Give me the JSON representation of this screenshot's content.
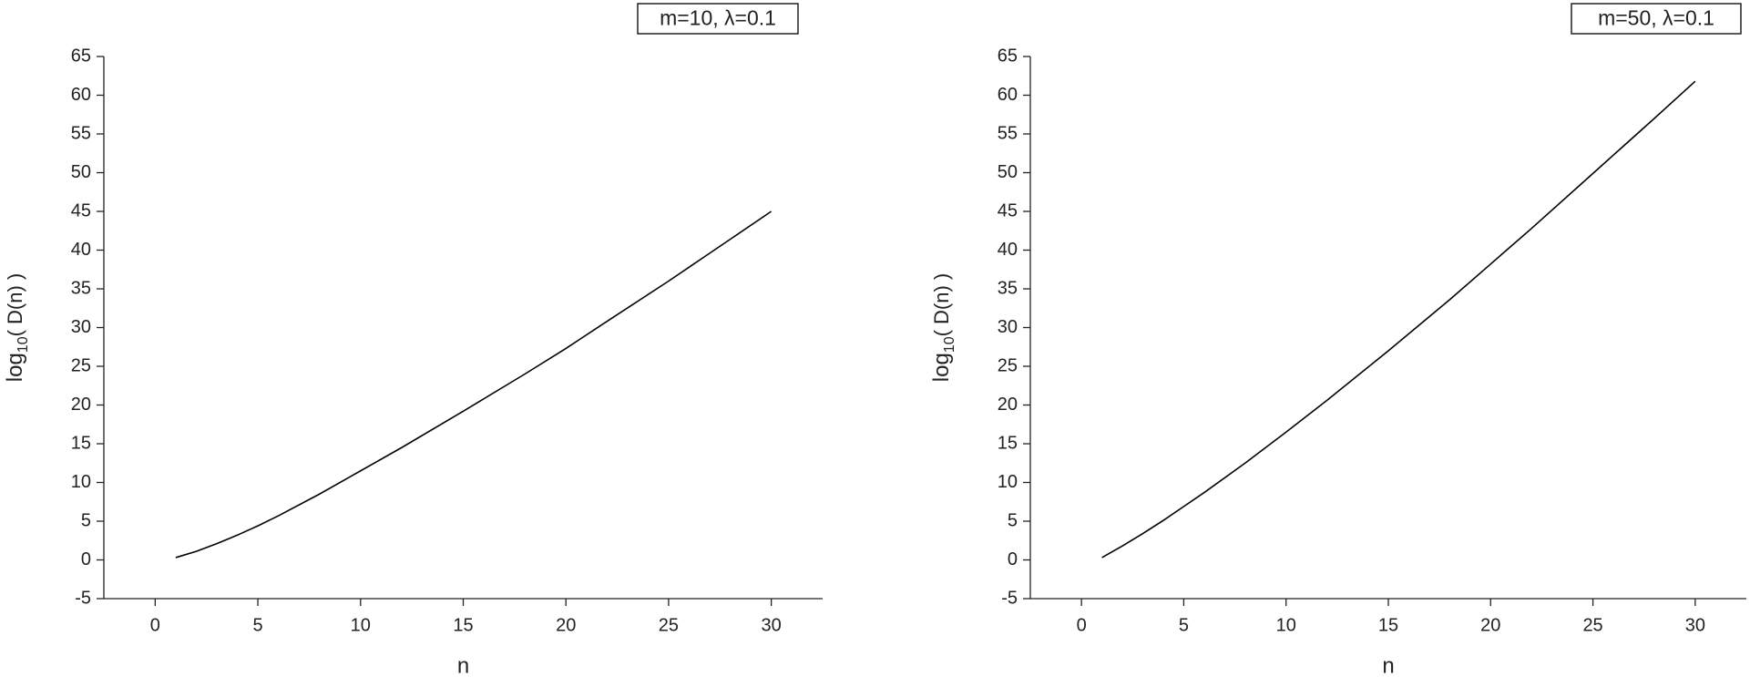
{
  "chart_data": [
    {
      "type": "line",
      "annotation": "m=10, λ=0.1",
      "x_label": "n",
      "y_label": {
        "base": "log",
        "subscript": "10",
        "argument": "( D(n) )"
      },
      "x": [
        1,
        2,
        3,
        4,
        5,
        6,
        8,
        10,
        12,
        15,
        18,
        20,
        22,
        25,
        28,
        30
      ],
      "series": [
        {
          "color": "#000000",
          "values": [
            0.3,
            1.1,
            2.1,
            3.2,
            4.4,
            5.7,
            8.5,
            11.5,
            14.5,
            19.2,
            24.0,
            27.3,
            30.8,
            36.0,
            41.4,
            45.0
          ]
        }
      ],
      "xlim": [
        -2.5,
        32.5
      ],
      "xticks": [
        0,
        5,
        10,
        15,
        20,
        25,
        30
      ],
      "ylim": [
        -5,
        65
      ],
      "yticks": [
        -5,
        0,
        5,
        10,
        15,
        20,
        25,
        30,
        35,
        40,
        45,
        50,
        55,
        60,
        65
      ]
    },
    {
      "type": "line",
      "annotation": "m=50, λ=0.1",
      "x_label": "n",
      "y_label": {
        "base": "log",
        "subscript": "10",
        "argument": "( D(n) )"
      },
      "x": [
        1,
        2,
        3,
        4,
        5,
        6,
        8,
        10,
        12,
        15,
        18,
        20,
        22,
        25,
        28,
        30
      ],
      "series": [
        {
          "color": "#000000",
          "values": [
            0.3,
            1.8,
            3.4,
            5.1,
            6.9,
            8.7,
            12.5,
            16.5,
            20.6,
            27.0,
            33.6,
            38.2,
            42.8,
            49.9,
            57.0,
            61.8
          ]
        }
      ],
      "xlim": [
        -2.5,
        32.5
      ],
      "xticks": [
        0,
        5,
        10,
        15,
        20,
        25,
        30
      ],
      "ylim": [
        -5,
        65
      ],
      "yticks": [
        -5,
        0,
        5,
        10,
        15,
        20,
        25,
        30,
        35,
        40,
        45,
        50,
        55,
        60,
        65
      ]
    }
  ]
}
